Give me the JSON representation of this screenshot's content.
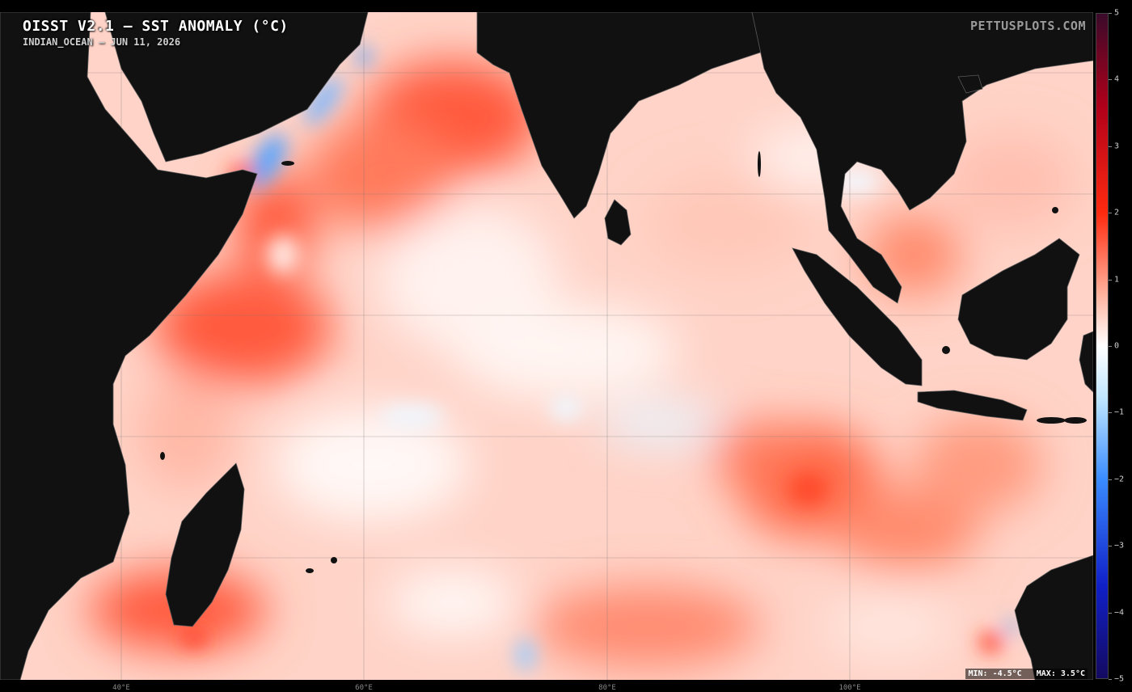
{
  "title": "OISST V2.1 — SST ANOMALY (°C)",
  "subtitle": "INDIAN_OCEAN — JUN 11, 2026",
  "credit": "PETTUSPLOTS.COM",
  "stats": {
    "min_label": "MIN:",
    "min_value": "-4.5°C",
    "max_label": "MAX:",
    "max_value": "3.5°C"
  },
  "colorbar": {
    "ticks": [
      "5",
      "4",
      "3",
      "2",
      "1",
      "0",
      "−1",
      "−2",
      "−3",
      "−4",
      "−5"
    ],
    "colors": {
      "max": "#3a0a2a",
      "warm_dark": "#b0001a",
      "warm": "#ff2a0f",
      "warm_light": "#ffb09a",
      "neutral": "#ffffff",
      "cool_light": "#bfe6ff",
      "cool": "#3a8cff",
      "cool_dark": "#1020c8",
      "min": "#140a60"
    }
  },
  "longitude_labels": [
    "40°E",
    "60°E",
    "80°E",
    "100°E"
  ],
  "land_color": "#111111",
  "grid": true
}
